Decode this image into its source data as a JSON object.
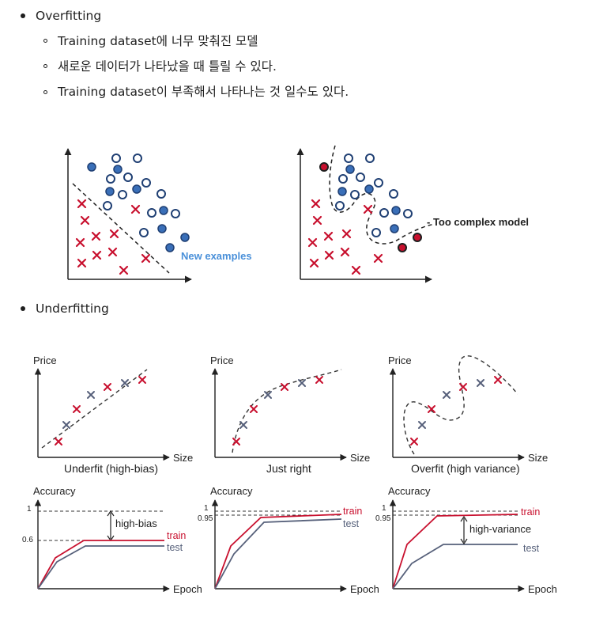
{
  "overfitting": {
    "heading": "Overfitting",
    "items": [
      "Training dataset에 너무 맞춰진 모델",
      "새로운 데이터가 나타났을 때 틀릴 수 있다.",
      "Training dataset이 부족해서 나타나는 것 일수도 있다."
    ],
    "figure": {
      "left_label": "New examples",
      "right_label": "- Too complex model"
    }
  },
  "underfitting": {
    "heading": "Underfitting",
    "scatter_panels": [
      {
        "ylabel": "Price",
        "xlabel": "Size",
        "caption": "Underfit (high-bias)"
      },
      {
        "ylabel": "Price",
        "xlabel": "Size",
        "caption": "Just right"
      },
      {
        "ylabel": "Price",
        "xlabel": "Size",
        "caption": "Overfit (high variance)"
      }
    ],
    "accuracy_panels": [
      {
        "ylabel": "Accuracy",
        "xlabel": "Epoch",
        "tick_top": "1",
        "tick_mid": "0.6",
        "gap_label": "high-bias",
        "train": "train",
        "test": "test"
      },
      {
        "ylabel": "Accuracy",
        "xlabel": "Epoch",
        "tick_top": "1",
        "tick_mid": "0.95",
        "train": "train",
        "test": "test"
      },
      {
        "ylabel": "Accuracy",
        "xlabel": "Epoch",
        "tick_top": "1",
        "tick_mid": "0.95",
        "gap_label": "high-variance",
        "train": "train",
        "test": "test"
      }
    ]
  },
  "colors": {
    "blue": "#3a6fb8",
    "red": "#c8102e",
    "gray_line": "#56607a",
    "label_blue": "#4a90d9"
  }
}
